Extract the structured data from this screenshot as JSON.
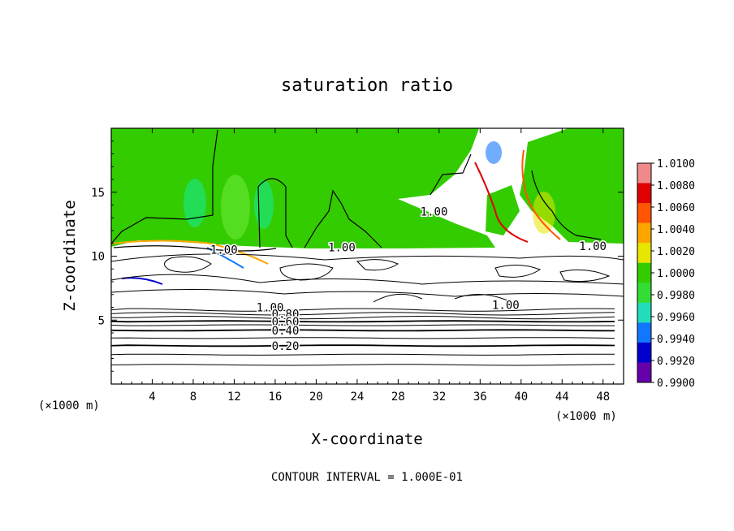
{
  "chart_data": {
    "type": "heatmap",
    "title": "saturation ratio",
    "xlabel": "X-coordinate",
    "ylabel": "Z-coordinate",
    "x_unit_left": "(×1000 m)",
    "x_unit_right": "(×1000 m)",
    "xlim": [
      0,
      50
    ],
    "ylim": [
      0,
      20
    ],
    "x_ticks": [
      4,
      8,
      12,
      16,
      20,
      24,
      28,
      32,
      36,
      40,
      44,
      48
    ],
    "y_ticks": [
      5,
      10,
      15
    ],
    "footer": "CONTOUR INTERVAL = 1.000E-01",
    "colorbar": {
      "labels": [
        "1.0100",
        "1.0080",
        "1.0060",
        "1.0040",
        "1.0020",
        "1.0000",
        "0.9980",
        "0.9960",
        "0.9940",
        "0.9920",
        "0.9900"
      ],
      "colors": [
        "#f08a8a",
        "#e00000",
        "#ff5500",
        "#ffa500",
        "#e6e600",
        "#33cc00",
        "#33dd33",
        "#22ddbb",
        "#1177ff",
        "#0000cc",
        "#6600aa"
      ]
    },
    "contour_labels": [
      {
        "text": "1.00",
        "x": 31.5,
        "z": 13.5
      },
      {
        "text": "1.00",
        "x": 22.5,
        "z": 10.7
      },
      {
        "text": "1.00",
        "x": 11.0,
        "z": 10.5
      },
      {
        "text": "1.00",
        "x": 47.0,
        "z": 10.8
      },
      {
        "text": "1.00",
        "x": 38.5,
        "z": 6.2
      },
      {
        "text": "1.00",
        "x": 15.5,
        "z": 6.0
      },
      {
        "text": "0.80",
        "x": 17.0,
        "z": 5.5
      },
      {
        "text": "0.60",
        "x": 17.0,
        "z": 4.9
      },
      {
        "text": "0.40",
        "x": 17.0,
        "z": 4.2
      },
      {
        "text": "0.20",
        "x": 17.0,
        "z": 3.0
      }
    ],
    "contour_levels_z": [
      1.5,
      2.3,
      3.0,
      3.6,
      4.2,
      4.6,
      4.9,
      5.2,
      5.5,
      5.8
    ]
  }
}
